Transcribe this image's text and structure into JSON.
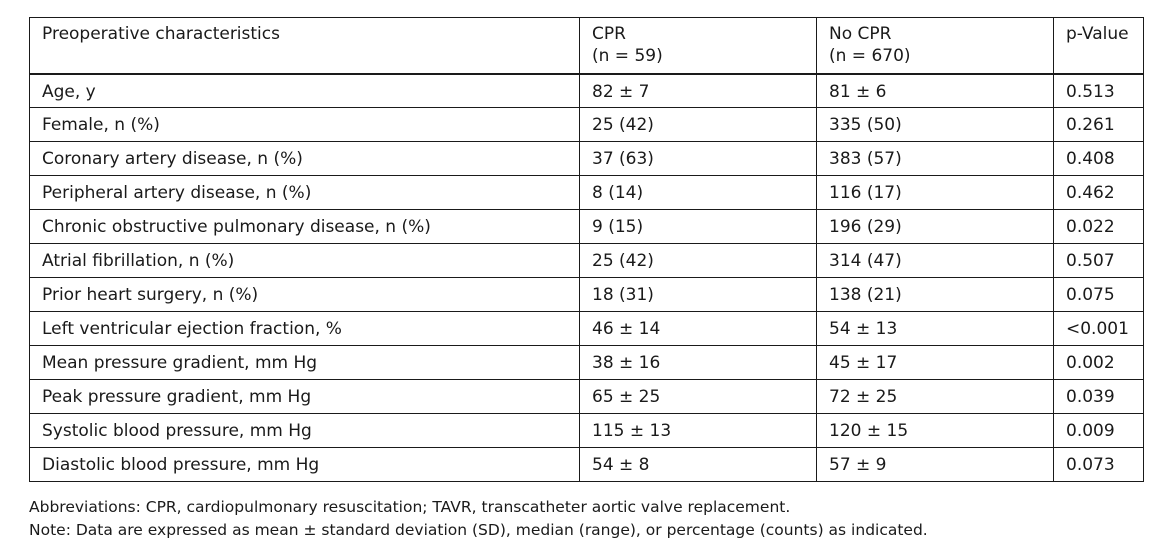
{
  "table": {
    "headers": {
      "characteristic": "Preoperative characteristics",
      "cpr_line1": "CPR",
      "cpr_line2": "(n = 59)",
      "nocpr_line1": "No CPR",
      "nocpr_line2": "(n = 670)",
      "pvalue": "p-Value"
    },
    "rows": [
      {
        "label": "Age, y",
        "cpr": "82 ± 7",
        "nocpr": "81 ± 6",
        "p": "0.513"
      },
      {
        "label": "Female, n (%)",
        "cpr": "25 (42)",
        "nocpr": "335 (50)",
        "p": "0.261"
      },
      {
        "label": "Coronary artery disease, n (%)",
        "cpr": "37 (63)",
        "nocpr": "383 (57)",
        "p": "0.408"
      },
      {
        "label": "Peripheral artery disease, n (%)",
        "cpr": "8 (14)",
        "nocpr": "116 (17)",
        "p": "0.462"
      },
      {
        "label": "Chronic obstructive pulmonary disease, n (%)",
        "cpr": "9 (15)",
        "nocpr": "196 (29)",
        "p": "0.022"
      },
      {
        "label": "Atrial fibrillation, n (%)",
        "cpr": "25 (42)",
        "nocpr": "314 (47)",
        "p": "0.507"
      },
      {
        "label": "Prior heart surgery, n (%)",
        "cpr": "18 (31)",
        "nocpr": "138 (21)",
        "p": "0.075"
      },
      {
        "label": "Left ventricular ejection fraction, %",
        "cpr": "46 ± 14",
        "nocpr": "54 ± 13",
        "p": "<0.001"
      },
      {
        "label": "Mean pressure gradient, mm Hg",
        "cpr": "38 ± 16",
        "nocpr": "45 ± 17",
        "p": "0.002"
      },
      {
        "label": "Peak pressure gradient, mm Hg",
        "cpr": "65 ± 25",
        "nocpr": "72 ± 25",
        "p": "0.039"
      },
      {
        "label": "Systolic blood pressure, mm Hg",
        "cpr": "115 ± 13",
        "nocpr": "120 ± 15",
        "p": "0.009"
      },
      {
        "label": "Diastolic blood pressure, mm Hg",
        "cpr": "54 ± 8",
        "nocpr": "57 ± 9",
        "p": "0.073"
      }
    ]
  },
  "notes": {
    "abbreviations": "Abbreviations: CPR, cardiopulmonary resuscitation; TAVR, transcatheter aortic valve replacement.",
    "note": "Note: Data are expressed as mean ± standard deviation (SD), median (range), or percentage (counts) as indicated."
  }
}
